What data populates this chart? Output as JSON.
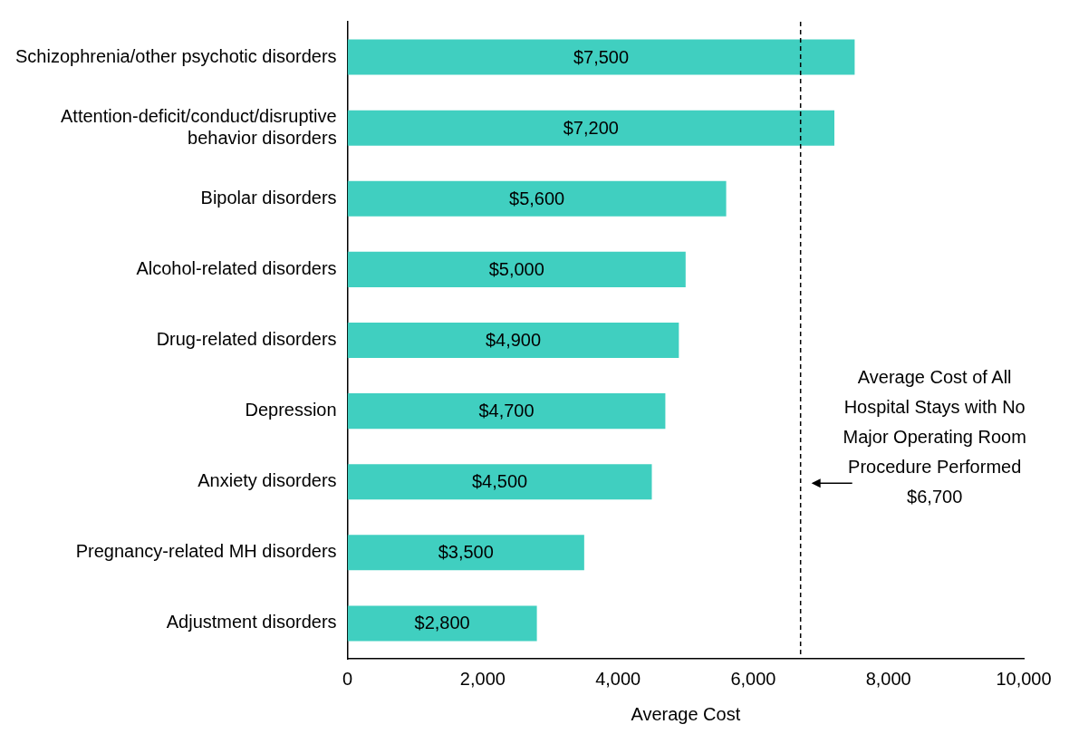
{
  "chart_data": {
    "type": "bar",
    "orientation": "horizontal",
    "xlabel": "Average Cost",
    "categories": [
      "Schizophrenia/other psychotic disorders",
      "Attention-deficit/conduct/disruptive behavior disorders",
      "Bipolar disorders",
      "Alcohol-related disorders",
      "Drug-related disorders",
      "Depression",
      "Anxiety disorders",
      "Pregnancy-related MH disorders",
      "Adjustment disorders"
    ],
    "values": [
      7500,
      7200,
      5600,
      5000,
      4900,
      4700,
      4500,
      3500,
      2800
    ],
    "value_labels": [
      "$7,500",
      "$7,200",
      "$5,600",
      "$5,000",
      "$4,900",
      "$4,700",
      "$4,500",
      "$3,500",
      "$2,800"
    ],
    "color": "#40cfc0",
    "xlim": [
      0,
      10000
    ],
    "xticks": [
      0,
      {
        "value": 2000,
        "label": "2,000"
      },
      {
        "value": 4000,
        "label": "4,000"
      },
      {
        "value": 6000,
        "label": "6,000"
      },
      {
        "value": 8000,
        "label": "8,000"
      },
      {
        "value": 10000,
        "label": "10,000"
      }
    ],
    "ref_lines": [
      {
        "axis": "x",
        "value": 6700,
        "label": "Average Cost of All Hospital Stays with No Major Operating Room Procedure Performed $6,700",
        "line_style": "dashed",
        "color": "#000000"
      }
    ],
    "grid": false,
    "legend": false
  }
}
